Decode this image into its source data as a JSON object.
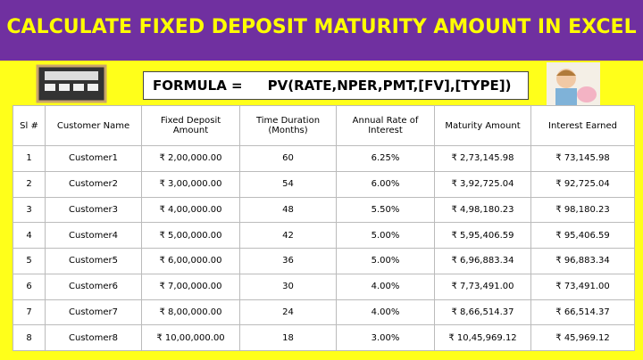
{
  "header": {
    "title": "CALCULATE FIXED DEPOSIT MATURITY AMOUNT IN EXCEL"
  },
  "formula": {
    "label": "FORMULA =",
    "expression": "PV(RATE,NPER,PMT,[FV],[TYPE])"
  },
  "table": {
    "headers": [
      "Sl #",
      "Customer Name",
      "Fixed Deposit Amount",
      "Time Duration (Months)",
      "Annual Rate of Interest",
      "Maturity Amount",
      "Interest Earned"
    ],
    "rows": [
      [
        "1",
        "Customer1",
        "₹ 2,00,000.00",
        "60",
        "6.25%",
        "₹ 2,73,145.98",
        "₹ 73,145.98"
      ],
      [
        "2",
        "Customer2",
        "₹ 3,00,000.00",
        "54",
        "6.00%",
        "₹ 3,92,725.04",
        "₹ 92,725.04"
      ],
      [
        "3",
        "Customer3",
        "₹ 4,00,000.00",
        "48",
        "5.50%",
        "₹ 4,98,180.23",
        "₹ 98,180.23"
      ],
      [
        "4",
        "Customer4",
        "₹ 5,00,000.00",
        "42",
        "5.00%",
        "₹ 5,95,406.59",
        "₹ 95,406.59"
      ],
      [
        "5",
        "Customer5",
        "₹ 6,00,000.00",
        "36",
        "5.00%",
        "₹ 6,96,883.34",
        "₹ 96,883.34"
      ],
      [
        "6",
        "Customer6",
        "₹ 7,00,000.00",
        "30",
        "4.00%",
        "₹ 7,73,491.00",
        "₹ 73,491.00"
      ],
      [
        "7",
        "Customer7",
        "₹ 8,00,000.00",
        "24",
        "4.00%",
        "₹ 8,66,514.37",
        "₹ 66,514.37"
      ],
      [
        "8",
        "Customer8",
        "₹ 10,00,000.00",
        "18",
        "3.00%",
        "₹ 10,45,969.12",
        "₹ 45,969.12"
      ]
    ]
  }
}
